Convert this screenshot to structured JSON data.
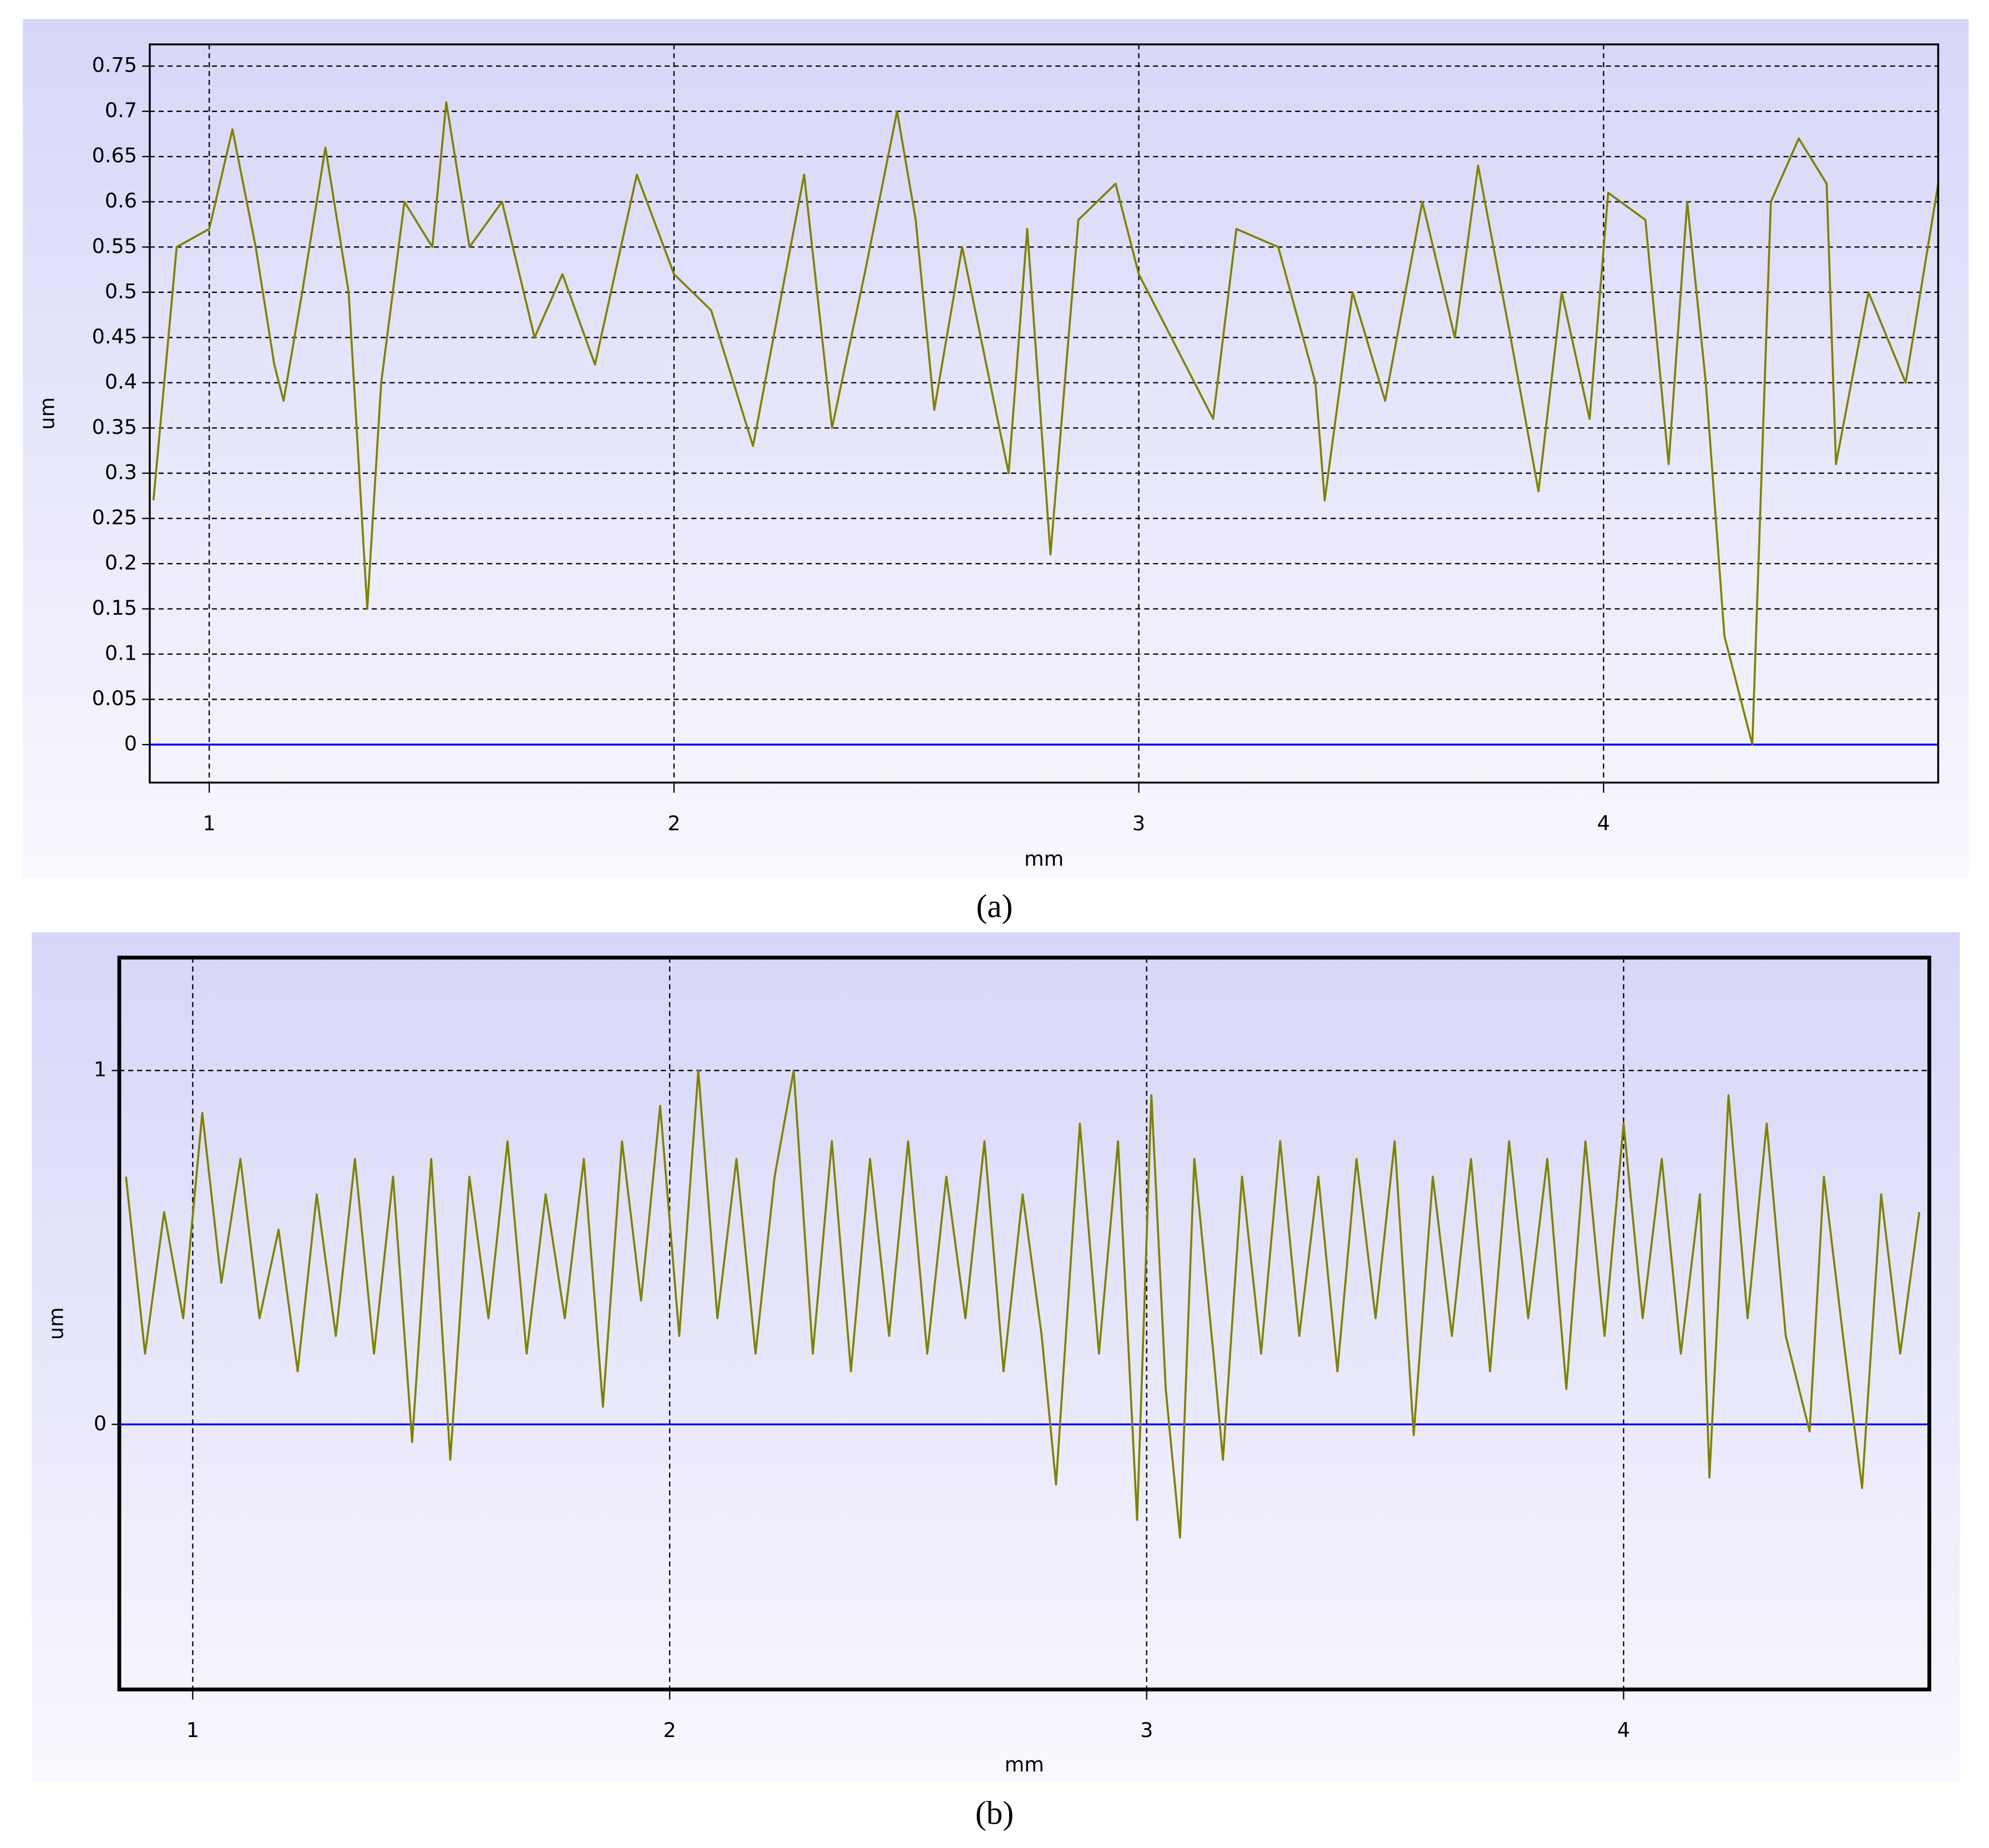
{
  "chart_data": [
    {
      "type": "line",
      "caption": "(a)",
      "x_label": "mm",
      "y_label": "um",
      "xlim": [
        0.872,
        4.72
      ],
      "ylim": [
        -0.042,
        0.774
      ],
      "xticks": [
        1,
        2,
        3,
        4
      ],
      "yticks": [
        0,
        0.05,
        0.1,
        0.15,
        0.2,
        0.25,
        0.3,
        0.35,
        0.4,
        0.45,
        0.5,
        0.55,
        0.6,
        0.65,
        0.7,
        0.75
      ],
      "grid": true,
      "zero_line_color": "#0000ff",
      "series": [
        {
          "color": "#808000",
          "x": [
            0.88,
            0.93,
            1.0,
            1.05,
            1.1,
            1.14,
            1.16,
            1.2,
            1.25,
            1.3,
            1.34,
            1.37,
            1.42,
            1.48,
            1.51,
            1.56,
            1.63,
            1.7,
            1.76,
            1.83,
            1.92,
            2.0,
            2.08,
            2.17,
            2.28,
            2.34,
            2.41,
            2.48,
            2.52,
            2.56,
            2.62,
            2.72,
            2.76,
            2.81,
            2.87,
            2.95,
            3.0,
            3.09,
            3.16,
            3.21,
            3.3,
            3.38,
            3.4,
            3.46,
            3.53,
            3.61,
            3.68,
            3.73,
            3.8,
            3.86,
            3.91,
            3.97,
            4.01,
            4.09,
            4.14,
            4.18,
            4.22,
            4.26,
            4.32,
            4.36,
            4.42,
            4.48,
            4.5,
            4.57,
            4.65,
            4.72
          ],
          "values": [
            0.27,
            0.55,
            0.57,
            0.68,
            0.55,
            0.42,
            0.38,
            0.5,
            0.66,
            0.5,
            0.15,
            0.4,
            0.6,
            0.55,
            0.71,
            0.55,
            0.6,
            0.45,
            0.52,
            0.42,
            0.63,
            0.52,
            0.48,
            0.33,
            0.63,
            0.35,
            0.52,
            0.7,
            0.58,
            0.37,
            0.55,
            0.3,
            0.57,
            0.21,
            0.58,
            0.62,
            0.52,
            0.43,
            0.36,
            0.57,
            0.55,
            0.4,
            0.27,
            0.5,
            0.38,
            0.6,
            0.45,
            0.64,
            0.45,
            0.28,
            0.5,
            0.36,
            0.61,
            0.58,
            0.31,
            0.6,
            0.4,
            0.12,
            0.0,
            0.6,
            0.67,
            0.62,
            0.31,
            0.5,
            0.4,
            0.62
          ]
        }
      ]
    },
    {
      "type": "line",
      "caption": "(b)",
      "x_label": "mm",
      "y_label": "um",
      "xlim": [
        0.846,
        4.641
      ],
      "ylim": [
        -0.749,
        1.319
      ],
      "xticks": [
        1,
        2,
        3,
        4
      ],
      "yticks": [
        0,
        1
      ],
      "grid": true,
      "zero_line_color": "#0000ff",
      "series": [
        {
          "color": "#808000",
          "x": [
            0.86,
            0.9,
            0.94,
            0.98,
            1.02,
            1.06,
            1.1,
            1.14,
            1.18,
            1.22,
            1.26,
            1.3,
            1.34,
            1.38,
            1.42,
            1.46,
            1.5,
            1.54,
            1.58,
            1.62,
            1.66,
            1.7,
            1.74,
            1.78,
            1.82,
            1.86,
            1.9,
            1.94,
            1.98,
            2.02,
            2.06,
            2.1,
            2.14,
            2.18,
            2.22,
            2.26,
            2.3,
            2.34,
            2.38,
            2.42,
            2.46,
            2.5,
            2.54,
            2.58,
            2.62,
            2.66,
            2.7,
            2.74,
            2.78,
            2.81,
            2.86,
            2.9,
            2.94,
            2.98,
            3.01,
            3.04,
            3.07,
            3.1,
            3.14,
            3.16,
            3.2,
            3.24,
            3.28,
            3.32,
            3.36,
            3.4,
            3.44,
            3.48,
            3.52,
            3.56,
            3.6,
            3.64,
            3.68,
            3.72,
            3.76,
            3.8,
            3.84,
            3.88,
            3.92,
            3.96,
            4.0,
            4.04,
            4.08,
            4.12,
            4.16,
            4.18,
            4.22,
            4.26,
            4.3,
            4.34,
            4.39,
            4.42,
            4.46,
            4.5,
            4.54,
            4.58,
            4.62
          ],
          "values": [
            0.7,
            0.2,
            0.6,
            0.3,
            0.88,
            0.4,
            0.75,
            0.3,
            0.55,
            0.15,
            0.65,
            0.25,
            0.75,
            0.2,
            0.7,
            -0.05,
            0.75,
            -0.1,
            0.7,
            0.3,
            0.8,
            0.2,
            0.65,
            0.3,
            0.75,
            0.05,
            0.8,
            0.35,
            0.9,
            0.25,
            1.0,
            0.3,
            0.75,
            0.2,
            0.7,
            1.0,
            0.2,
            0.8,
            0.15,
            0.75,
            0.25,
            0.8,
            0.2,
            0.7,
            0.3,
            0.8,
            0.15,
            0.65,
            0.25,
            -0.17,
            0.85,
            0.2,
            0.8,
            -0.27,
            0.93,
            0.1,
            -0.32,
            0.75,
            0.2,
            -0.1,
            0.7,
            0.2,
            0.8,
            0.25,
            0.7,
            0.15,
            0.75,
            0.3,
            0.8,
            -0.03,
            0.7,
            0.25,
            0.75,
            0.15,
            0.8,
            0.3,
            0.75,
            0.1,
            0.8,
            0.25,
            0.85,
            0.3,
            0.75,
            0.2,
            0.65,
            -0.15,
            0.93,
            0.3,
            0.85,
            0.25,
            -0.02,
            0.7,
            0.25,
            -0.18,
            0.65,
            0.2,
            0.6
          ]
        }
      ]
    }
  ]
}
